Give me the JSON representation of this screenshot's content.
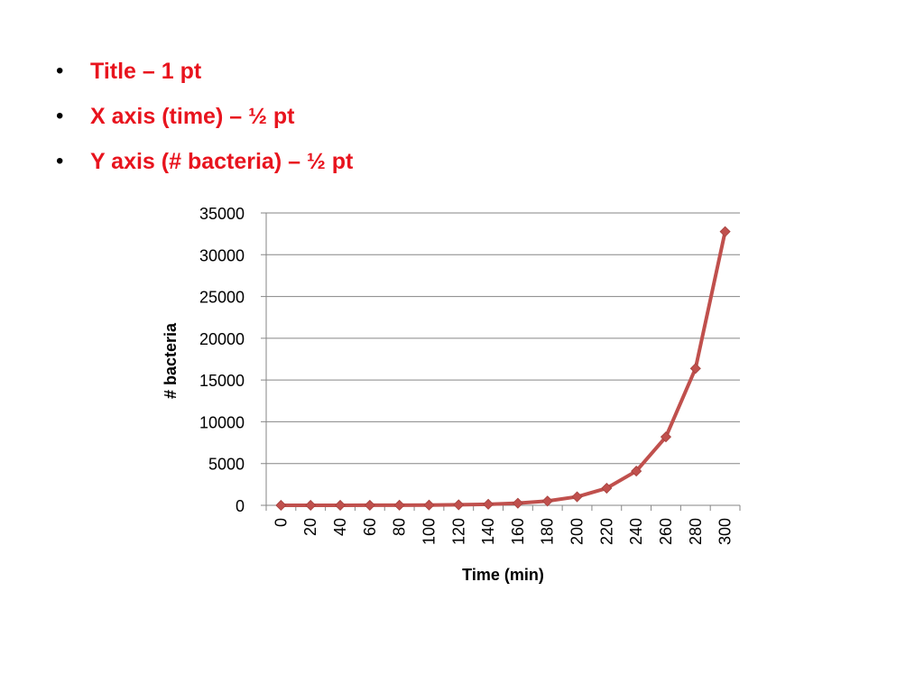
{
  "bullets": [
    {
      "text": "Title – 1 pt"
    },
    {
      "text": "X axis (time) – ½ pt"
    },
    {
      "text": "Y axis (# bacteria) – ½ pt"
    }
  ],
  "colors": {
    "bullet_text": "#e8141e",
    "series_line": "#c0504d",
    "gridline": "#868686"
  },
  "chart_data": {
    "type": "line",
    "title": "",
    "xlabel": "Time (min)",
    "ylabel": "# bacteria",
    "categories": [
      "0",
      "20",
      "40",
      "60",
      "80",
      "100",
      "120",
      "140",
      "160",
      "180",
      "200",
      "220",
      "240",
      "260",
      "280",
      "300"
    ],
    "series": [
      {
        "values": [
          1,
          2,
          4,
          8,
          16,
          32,
          64,
          128,
          256,
          512,
          1024,
          2048,
          4096,
          8192,
          16384,
          32768
        ]
      }
    ],
    "yticks": [
      "0",
      "5000",
      "10000",
      "15000",
      "20000",
      "25000",
      "30000",
      "35000"
    ],
    "ylim": [
      0,
      35000
    ],
    "grid": true,
    "legend": "none",
    "marker": "diamond"
  }
}
